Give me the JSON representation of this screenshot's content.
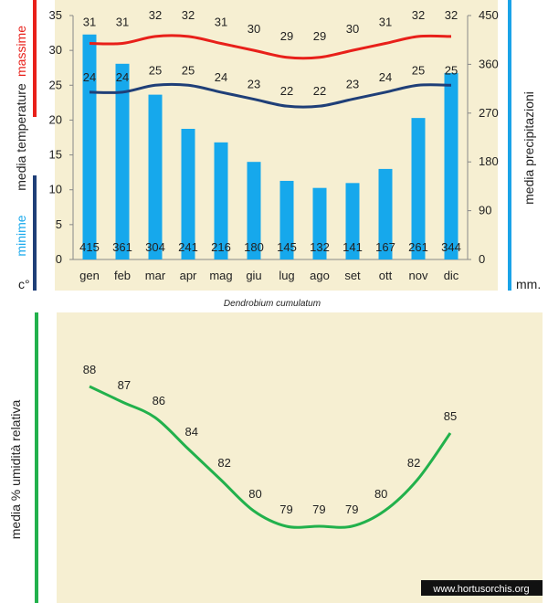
{
  "colors": {
    "background": "#f6efd2",
    "bars": "#16a8ec",
    "max_line": "#e8201a",
    "min_line": "#1f3f78",
    "humidity_line": "#22b14c",
    "right_axis_accent": "#1aa3e8"
  },
  "chart_data": [
    {
      "type": "bar+line",
      "categories": [
        "gen",
        "feb",
        "mar",
        "apr",
        "mag",
        "giu",
        "lug",
        "ago",
        "set",
        "ott",
        "nov",
        "dic"
      ],
      "left_axis": {
        "ticks": [
          "0",
          "5",
          "10",
          "15",
          "20",
          "25",
          "30",
          "35"
        ],
        "ylim": [
          0,
          35
        ],
        "label_max": "massime",
        "label_media": "media  temperature",
        "label_min": "minime",
        "unit": "c°"
      },
      "right_axis": {
        "ticks": [
          "0",
          "90",
          "180",
          "270",
          "360",
          "450"
        ],
        "ylim": [
          0,
          450
        ],
        "label": "media  precipitazioni",
        "unit": "mm."
      },
      "series": [
        {
          "name": "massime",
          "kind": "line",
          "values": [
            31,
            31,
            32,
            32,
            31,
            30,
            29,
            29,
            30,
            31,
            32,
            32
          ]
        },
        {
          "name": "minime",
          "kind": "line",
          "values": [
            24,
            24,
            25,
            25,
            24,
            23,
            22,
            22,
            23,
            24,
            25,
            25
          ]
        },
        {
          "name": "media precipitazioni",
          "kind": "bar",
          "values": [
            415,
            361,
            304,
            241,
            216,
            180,
            145,
            132,
            141,
            167,
            261,
            344
          ]
        }
      ],
      "caption": "Dendrobium cumulatum"
    },
    {
      "type": "line",
      "ylabel": "media %  umidità relativa",
      "values": [
        88,
        87,
        86,
        84,
        82,
        80,
        79,
        79,
        79,
        80,
        82,
        85
      ]
    }
  ],
  "watermark": "www.hortusorchis.org"
}
